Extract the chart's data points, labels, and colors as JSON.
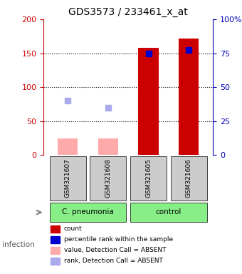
{
  "title": "GDS3573 / 233461_x_at",
  "samples": [
    "GSM321607",
    "GSM321608",
    "GSM321605",
    "GSM321606"
  ],
  "bar_values": [
    25,
    25,
    158,
    172
  ],
  "bar_colors": [
    "#ffaaaa",
    "#ffaaaa",
    "#cc0000",
    "#cc0000"
  ],
  "rank_values": [
    80,
    70,
    150,
    155
  ],
  "rank_colors": [
    "#aaaaee",
    "#aaaaee",
    "#0000cc",
    "#0000cc"
  ],
  "ylim_left": [
    0,
    200
  ],
  "ylim_right": [
    0,
    100
  ],
  "yticks_left": [
    0,
    50,
    100,
    150,
    200
  ],
  "yticks_right": [
    0,
    25,
    50,
    75,
    100
  ],
  "group_labels": [
    "C. pneumonia",
    "control"
  ],
  "group_colors": [
    "#88ee88",
    "#88ee88"
  ],
  "infection_label": "infection",
  "legend_items": [
    {
      "label": "count",
      "color": "#cc0000"
    },
    {
      "label": "percentile rank within the sample",
      "color": "#0000cc"
    },
    {
      "label": "value, Detection Call = ABSENT",
      "color": "#ffaaaa"
    },
    {
      "label": "rank, Detection Call = ABSENT",
      "color": "#aaaaee"
    }
  ],
  "sample_box_color": "#cccccc",
  "left_axis_color": "#cc0000",
  "right_axis_color": "#0000bb",
  "grid_yvals": [
    50,
    100,
    150
  ]
}
